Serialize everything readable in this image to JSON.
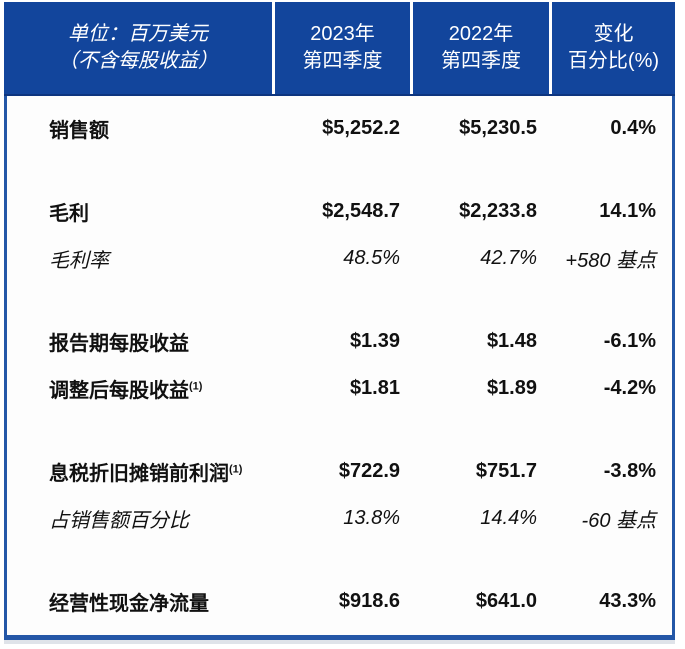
{
  "colors": {
    "header_bg": "#12459c",
    "border_blue": "#2457a7",
    "header_text": "#ffffff",
    "body_text": "#111111"
  },
  "header": {
    "unit_line1": "单位：百万美元",
    "unit_line2": "（不含每股收益）",
    "col_2023_line1": "2023年",
    "col_2023_line2": "第四季度",
    "col_2022_line1": "2022年",
    "col_2022_line2": "第四季度",
    "col_change_line1": "变化",
    "col_change_line2": "百分比(%)"
  },
  "rows": [
    {
      "label": "销售额",
      "sup": "",
      "y2023": "$5,252.2",
      "y2022": "$5,230.5",
      "change": "0.4%",
      "style": "bold",
      "gap_before": false
    },
    {
      "label": "毛利",
      "sup": "",
      "y2023": "$2,548.7",
      "y2022": "$2,233.8",
      "change": "14.1%",
      "style": "bold",
      "gap_before": true
    },
    {
      "label": "毛利率",
      "sup": "",
      "y2023": "48.5%",
      "y2022": "42.7%",
      "change": "+580 基点",
      "style": "italic",
      "gap_before": false
    },
    {
      "label": "报告期每股收益",
      "sup": "",
      "y2023": "$1.39",
      "y2022": "$1.48",
      "change": "-6.1%",
      "style": "bold",
      "gap_before": true
    },
    {
      "label": "调整后每股收益",
      "sup": "(1)",
      "y2023": "$1.81",
      "y2022": "$1.89",
      "change": "-4.2%",
      "style": "bold",
      "gap_before": false
    },
    {
      "label": "息税折旧摊销前利润",
      "sup": "(1)",
      "y2023": "$722.9",
      "y2022": "$751.7",
      "change": "-3.8%",
      "style": "bold",
      "gap_before": true
    },
    {
      "label": "占销售额百分比",
      "sup": "",
      "y2023": "13.8%",
      "y2022": "14.4%",
      "change": "-60 基点",
      "style": "italic",
      "gap_before": false
    },
    {
      "label": "经营性现金净流量",
      "sup": "",
      "y2023": "$918.6",
      "y2022": "$641.0",
      "change": "43.3%",
      "style": "bold",
      "gap_before": true
    }
  ]
}
